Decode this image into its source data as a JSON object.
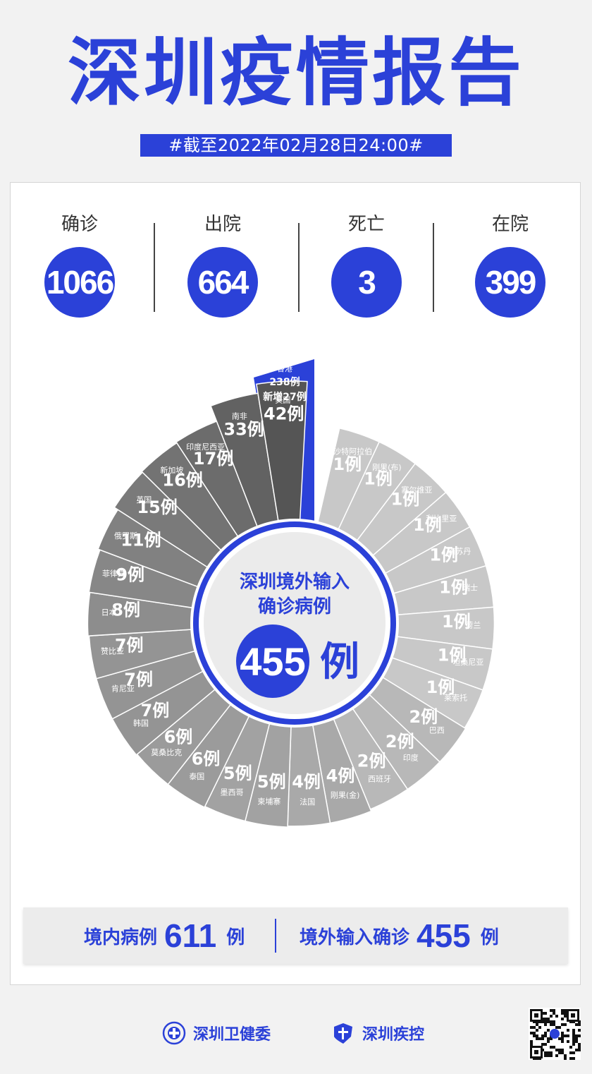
{
  "header": {
    "title": "深圳疫情报告",
    "date": "#截至2022年02月28日24:00#"
  },
  "stats": [
    {
      "label": "确诊",
      "value": "1066"
    },
    {
      "label": "出院",
      "value": "664"
    },
    {
      "label": "死亡",
      "value": "3"
    },
    {
      "label": "在院",
      "value": "399"
    }
  ],
  "center": {
    "line1": "深圳境外输入",
    "line2": "确诊病例",
    "number": "455",
    "unit": "例"
  },
  "chart_data": {
    "type": "pie",
    "title": "深圳境外输入确诊病例",
    "total": 455,
    "unit": "例",
    "slices": [
      {
        "name": "香港",
        "value": 238,
        "note": "新增27例",
        "label": "238例",
        "color": "#2b41d8"
      },
      {
        "name": "沙特阿拉伯",
        "value": 1,
        "label": "1例",
        "color": "#c8c8c8"
      },
      {
        "name": "刚果(布)",
        "value": 1,
        "label": "1例",
        "color": "#c8c8c8"
      },
      {
        "name": "塞尔维亚",
        "value": 1,
        "label": "1例",
        "color": "#c8c8c8"
      },
      {
        "name": "利比里亚",
        "value": 1,
        "label": "1例",
        "color": "#c8c8c8"
      },
      {
        "name": "南苏丹",
        "value": 1,
        "label": "1例",
        "color": "#c8c8c8"
      },
      {
        "name": "瑞士",
        "value": 1,
        "label": "1例",
        "color": "#c8c8c8"
      },
      {
        "name": "荷兰",
        "value": 1,
        "label": "1例",
        "color": "#c8c8c8"
      },
      {
        "name": "坦桑尼亚",
        "value": 1,
        "label": "1例",
        "color": "#c8c8c8"
      },
      {
        "name": "莱索托",
        "value": 1,
        "label": "1例",
        "color": "#c8c8c8"
      },
      {
        "name": "巴西",
        "value": 2,
        "label": "2例",
        "color": "#b8b8b8"
      },
      {
        "name": "印度",
        "value": 2,
        "label": "2例",
        "color": "#b8b8b8"
      },
      {
        "name": "西班牙",
        "value": 2,
        "label": "2例",
        "color": "#b8b8b8"
      },
      {
        "name": "刚果(金)",
        "value": 4,
        "label": "4例",
        "color": "#a9a9a9"
      },
      {
        "name": "法国",
        "value": 4,
        "label": "4例",
        "color": "#a9a9a9"
      },
      {
        "name": "柬埔寨",
        "value": 5,
        "label": "5例",
        "color": "#a2a2a2"
      },
      {
        "name": "墨西哥",
        "value": 5,
        "label": "5例",
        "color": "#a2a2a2"
      },
      {
        "name": "泰国",
        "value": 6,
        "label": "6例",
        "color": "#9b9b9b"
      },
      {
        "name": "莫桑比克",
        "value": 6,
        "label": "6例",
        "color": "#9b9b9b"
      },
      {
        "name": "韩国",
        "value": 7,
        "label": "7例",
        "color": "#949494"
      },
      {
        "name": "肯尼亚",
        "value": 7,
        "label": "7例",
        "color": "#949494"
      },
      {
        "name": "赞比亚",
        "value": 7,
        "label": "7例",
        "color": "#949494"
      },
      {
        "name": "日本",
        "value": 8,
        "label": "8例",
        "color": "#8d8d8d"
      },
      {
        "name": "菲律宾",
        "value": 9,
        "label": "9例",
        "color": "#878787"
      },
      {
        "name": "俄罗斯",
        "value": 11,
        "label": "11例",
        "color": "#818181"
      },
      {
        "name": "英国",
        "value": 15,
        "label": "15例",
        "color": "#7a7a7a"
      },
      {
        "name": "新加坡",
        "value": 16,
        "label": "16例",
        "color": "#737373"
      },
      {
        "name": "印度尼西亚",
        "value": 17,
        "label": "17例",
        "color": "#6c6c6c"
      },
      {
        "name": "南非",
        "value": 33,
        "label": "33例",
        "color": "#626262"
      },
      {
        "name": "美国",
        "value": 42,
        "label": "42例",
        "color": "#555555"
      }
    ]
  },
  "summary": {
    "domestic_label": "境内病例",
    "domestic_value": "611",
    "domestic_unit": "例",
    "imported_label": "境外输入确诊",
    "imported_value": "455",
    "imported_unit": "例"
  },
  "footer": {
    "org1": "深圳卫健委",
    "org2": "深圳疾控"
  },
  "colors": {
    "accent": "#2b41d8"
  }
}
